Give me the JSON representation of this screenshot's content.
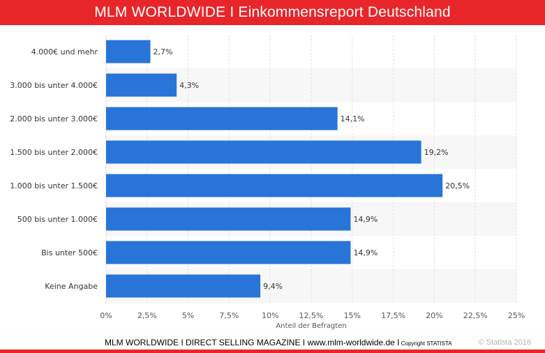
{
  "header": {
    "title": "MLM WORLDWIDE I Einkommensreport Deutschland"
  },
  "chart_data": {
    "type": "bar",
    "orientation": "horizontal",
    "categories": [
      "4.000€ und mehr",
      "3.000 bis unter 4.000€",
      "2.000 bis unter 3.000€",
      "1.500 bis unter 2.000€",
      "1.000 bis unter 1.500€",
      "500 bis unter 1.000€",
      "Bis unter 500€",
      "Keine Angabe"
    ],
    "values": [
      2.7,
      4.3,
      14.1,
      19.2,
      20.5,
      14.9,
      14.9,
      9.4
    ],
    "data_labels": [
      "2,7%",
      "4,3%",
      "14,1%",
      "19,2%",
      "20,5%",
      "14,9%",
      "14,9%",
      "9,4%"
    ],
    "xlabel": "Anteil der Befragten",
    "xlim": [
      0,
      25
    ],
    "x_ticks": [
      0,
      2.5,
      5,
      7.5,
      10,
      12.5,
      15,
      17.5,
      20,
      22.5,
      25
    ],
    "x_tick_labels": [
      "0%",
      "2,5%",
      "5%",
      "7,5%",
      "10%",
      "12,5%",
      "15%",
      "17,5%",
      "20%",
      "22,5%",
      "25%"
    ],
    "grid": true,
    "colors": {
      "bar": "#2874d8",
      "band": "#f7f7f7",
      "grid": "#e2e2e2"
    }
  },
  "footer": {
    "main_text": "MLM WORLDWIDE I DIRECT SELLING MAGAZINE  I  www.mlm-worldwide.de I",
    "copyright_small": " Copyright STATISTA",
    "credit": "© Statista 2016"
  }
}
